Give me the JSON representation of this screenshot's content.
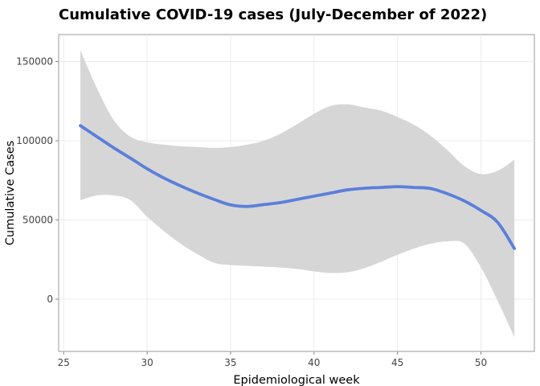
{
  "chart_data": {
    "type": "line",
    "title": "Cumulative COVID-19 cases (July-December of 2022)",
    "xlabel": "Epidemiological week",
    "ylabel": "Cumulative Cases",
    "xlim": [
      24.7,
      53.2
    ],
    "ylim": [
      -33000,
      167000
    ],
    "xticks": [
      25,
      30,
      35,
      40,
      45,
      50
    ],
    "yticks": [
      0,
      50000,
      100000,
      150000
    ],
    "grid": true,
    "legend": "none",
    "colors": {
      "line": "#5B7FDB",
      "band": "#D6D6D6",
      "grid": "#EBEBEB",
      "frame": "#999999"
    },
    "series": [
      {
        "x": [
          26,
          27,
          28,
          29,
          30,
          31,
          32,
          33,
          34,
          35,
          36,
          37,
          38,
          39,
          40,
          41,
          42,
          43,
          44,
          45,
          46,
          47,
          48,
          49,
          50,
          51,
          52
        ],
        "y": [
          109500,
          102500,
          95500,
          89000,
          82300,
          76500,
          71500,
          67000,
          63000,
          59500,
          58500,
          59700,
          61000,
          63000,
          65000,
          67000,
          69000,
          70000,
          70500,
          71000,
          70500,
          69800,
          66500,
          62000,
          56000,
          48500,
          32000
        ],
        "lower": [
          62500,
          65500,
          65500,
          62500,
          52000,
          43000,
          35000,
          28500,
          23000,
          21500,
          21000,
          20500,
          20000,
          19000,
          17500,
          16500,
          17000,
          19500,
          23500,
          28000,
          32000,
          35000,
          36500,
          35000,
          20000,
          -1000,
          -24000
        ],
        "upper": [
          157000,
          133000,
          113000,
          102500,
          99000,
          97500,
          96500,
          96000,
          95500,
          96000,
          97500,
          100000,
          104500,
          110500,
          117000,
          122000,
          123000,
          121000,
          119000,
          115000,
          110000,
          103000,
          94000,
          84000,
          79000,
          81000,
          88000
        ]
      }
    ]
  }
}
